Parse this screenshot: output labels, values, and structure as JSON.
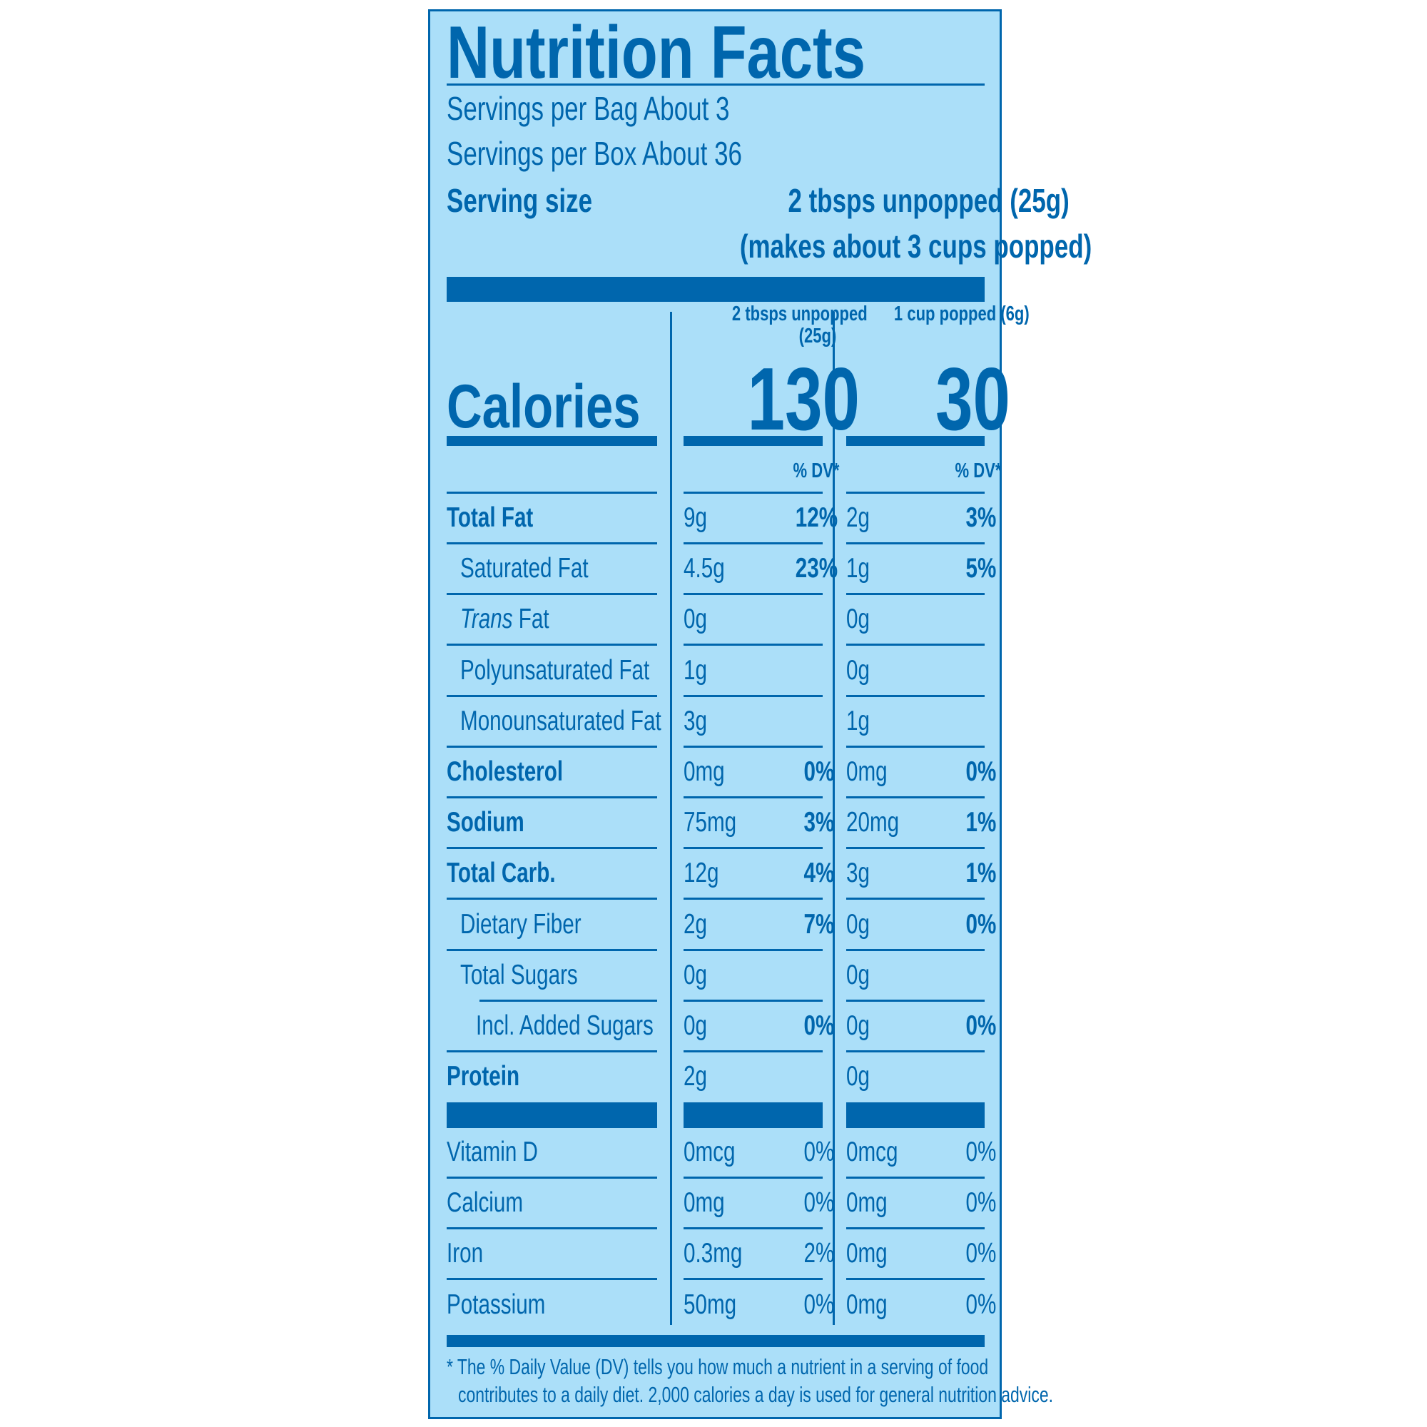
{
  "title": "Nutrition Facts",
  "servings_per_bag": "Servings per Bag About 3",
  "servings_per_box": "Servings per Box About 36",
  "serving_size_label": "Serving size",
  "serving_size_value": "2 tbsps unpopped (25g)",
  "serving_size_note": "(makes about 3 cups popped)",
  "columns": [
    {
      "header_line1": "2 tbsps unpopped",
      "header_line2": "(25g)",
      "calories": "130",
      "dv_label": "% DV*"
    },
    {
      "header_line1": "1 cup popped (6g)",
      "header_line2": "",
      "calories": "30",
      "dv_label": "% DV*"
    }
  ],
  "calories_label": "Calories",
  "nutrients": [
    {
      "name": "Total Fat",
      "bold": true,
      "indent": 0,
      "v": [
        [
          "9g",
          "12%"
        ],
        [
          "2g",
          "3%"
        ]
      ]
    },
    {
      "name": "Saturated Fat",
      "bold": false,
      "indent": 1,
      "v": [
        [
          "4.5g",
          "23%"
        ],
        [
          "1g",
          "5%"
        ]
      ]
    },
    {
      "name_italic": "Trans",
      "name": " Fat",
      "bold": false,
      "indent": 1,
      "v": [
        [
          "0g",
          ""
        ],
        [
          "0g",
          ""
        ]
      ]
    },
    {
      "name": "Polyunsaturated Fat",
      "bold": false,
      "indent": 1,
      "v": [
        [
          "1g",
          ""
        ],
        [
          "0g",
          ""
        ]
      ]
    },
    {
      "name": "Monounsaturated Fat",
      "bold": false,
      "indent": 1,
      "v": [
        [
          "3g",
          ""
        ],
        [
          "1g",
          ""
        ]
      ]
    },
    {
      "name": "Cholesterol",
      "bold": true,
      "indent": 0,
      "v": [
        [
          "0mg",
          "0%"
        ],
        [
          "0mg",
          "0%"
        ]
      ]
    },
    {
      "name": "Sodium",
      "bold": true,
      "indent": 0,
      "v": [
        [
          "75mg",
          "3%"
        ],
        [
          "20mg",
          "1%"
        ]
      ]
    },
    {
      "name": "Total Carb.",
      "bold": true,
      "indent": 0,
      "v": [
        [
          "12g",
          "4%"
        ],
        [
          "3g",
          "1%"
        ]
      ]
    },
    {
      "name": "Dietary Fiber",
      "bold": false,
      "indent": 1,
      "v": [
        [
          "2g",
          "7%"
        ],
        [
          "0g",
          "0%"
        ]
      ]
    },
    {
      "name": "Total Sugars",
      "bold": false,
      "indent": 1,
      "v": [
        [
          "0g",
          ""
        ],
        [
          "0g",
          ""
        ]
      ]
    },
    {
      "name": "Incl. Added Sugars",
      "bold": false,
      "indent": 2,
      "v": [
        [
          "0g",
          "0%"
        ],
        [
          "0g",
          "0%"
        ]
      ]
    },
    {
      "name": "Protein",
      "bold": true,
      "indent": 0,
      "v": [
        [
          "2g",
          ""
        ],
        [
          "0g",
          ""
        ]
      ]
    }
  ],
  "vitamins": [
    {
      "name": "Vitamin D",
      "v": [
        [
          "0mcg",
          "0%"
        ],
        [
          "0mcg",
          "0%"
        ]
      ]
    },
    {
      "name": "Calcium",
      "v": [
        [
          "0mg",
          "0%"
        ],
        [
          "0mg",
          "0%"
        ]
      ]
    },
    {
      "name": "Iron",
      "v": [
        [
          "0.3mg",
          "2%"
        ],
        [
          "0mg",
          "0%"
        ]
      ]
    },
    {
      "name": "Potassium",
      "v": [
        [
          "50mg",
          "0%"
        ],
        [
          "0mg",
          "0%"
        ]
      ]
    }
  ],
  "footnote_line1": "* The % Daily Value (DV) tells you how much a nutrient in a serving of food",
  "footnote_line2": "contributes to a daily diet. 2,000 calories a day is used for general nutrition advice.",
  "colors": {
    "background": "#abdff9",
    "ink": "#0066ad"
  }
}
